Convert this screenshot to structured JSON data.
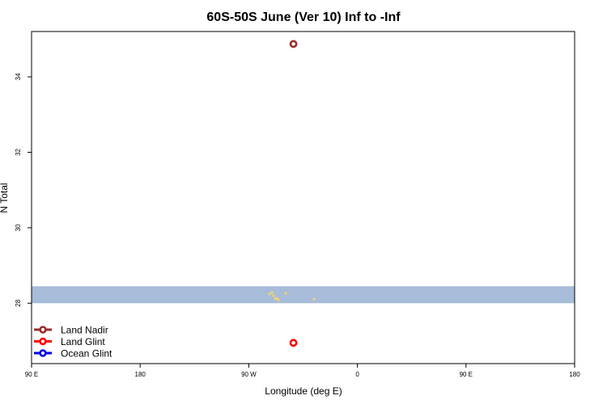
{
  "chart_data": {
    "type": "scatter",
    "title": "60S-50S June (Ver 10)   Inf to -Inf",
    "xlabel": "Longitude (deg E)",
    "ylabel": "N Total",
    "x_ticks": [
      {
        "value": 90,
        "label": "90 E"
      },
      {
        "value": 180,
        "label": "180"
      },
      {
        "value": 270,
        "label": "90 W"
      },
      {
        "value": 360,
        "label": "0"
      },
      {
        "value": 450,
        "label": "90 E"
      },
      {
        "value": 540,
        "label": "180"
      }
    ],
    "y_ticks": [
      {
        "value": 28,
        "label": "28"
      },
      {
        "value": 30,
        "label": "30"
      },
      {
        "value": 32,
        "label": "32"
      },
      {
        "value": 34,
        "label": "34"
      }
    ],
    "xlim": [
      90,
      540
    ],
    "ylim": [
      26.4,
      35.2
    ],
    "grid": false,
    "legend_position": "bottom-left",
    "map_band": {
      "y_range": [
        28.0,
        28.45
      ],
      "color": "#a6bcd9",
      "land_color": "#f2d27a"
    },
    "series": [
      {
        "name": "Land Nadir",
        "color": "#9b2b2b",
        "points": [
          {
            "x": 307,
            "y": 34.87
          }
        ]
      },
      {
        "name": "Land Glint",
        "color": "#ff0000",
        "points": [
          {
            "x": 307,
            "y": 26.95
          }
        ]
      },
      {
        "name": "Ocean Glint",
        "color": "#0000ee",
        "points": []
      }
    ]
  }
}
